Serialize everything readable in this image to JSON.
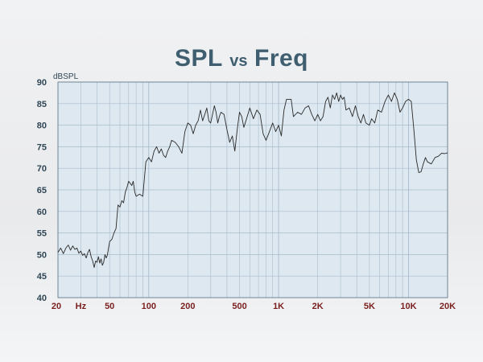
{
  "chart_data": {
    "type": "line",
    "title_main_left": "SPL",
    "title_vs": "vs",
    "title_main_right": "Freq",
    "ylabel": "dBSPL",
    "x_scale": "log",
    "xlim": [
      20,
      20000
    ],
    "ylim": [
      40,
      90
    ],
    "grid": true,
    "y_ticks": [
      40,
      45,
      50,
      55,
      60,
      65,
      70,
      75,
      80,
      85,
      90
    ],
    "x_ticks": [
      {
        "value": 20,
        "label": "20"
      },
      {
        "value": 30,
        "label": "Hz"
      },
      {
        "value": 50,
        "label": "50"
      },
      {
        "value": 100,
        "label": "100"
      },
      {
        "value": 200,
        "label": "200"
      },
      {
        "value": 500,
        "label": "500"
      },
      {
        "value": 1000,
        "label": "1K"
      },
      {
        "value": 2000,
        "label": "2K"
      },
      {
        "value": 5000,
        "label": "5K"
      },
      {
        "value": 10000,
        "label": "10K"
      },
      {
        "value": 20000,
        "label": "20K"
      }
    ],
    "colors": {
      "plot_background": "#dde8f0",
      "grid": "#a9bccb",
      "line": "#2a2a2a",
      "title": "#3f5e6f",
      "x_tick": "#7a1f1f",
      "y_tick": "#2f4654"
    },
    "series": [
      {
        "points": [
          [
            20,
            50.5
          ],
          [
            21,
            51.5
          ],
          [
            22,
            50.2
          ],
          [
            23,
            51.5
          ],
          [
            24,
            52.2
          ],
          [
            25,
            51.0
          ],
          [
            26,
            52.0
          ],
          [
            27,
            51.2
          ],
          [
            28,
            51.5
          ],
          [
            29,
            50.3
          ],
          [
            30,
            50.8
          ],
          [
            31,
            49.8
          ],
          [
            32,
            50.2
          ],
          [
            33,
            49.2
          ],
          [
            34,
            50.5
          ],
          [
            35,
            51.2
          ],
          [
            36,
            49.5
          ],
          [
            37,
            48.5
          ],
          [
            38,
            47.0
          ],
          [
            39,
            48.5
          ],
          [
            40,
            48.2
          ],
          [
            41,
            49.5
          ],
          [
            42,
            48.0
          ],
          [
            43,
            49.0
          ],
          [
            44,
            47.5
          ],
          [
            45,
            48.2
          ],
          [
            46,
            50.0
          ],
          [
            47,
            49.2
          ],
          [
            48,
            49.8
          ],
          [
            50,
            53.0
          ],
          [
            52,
            53.5
          ],
          [
            54,
            55.0
          ],
          [
            56,
            56.0
          ],
          [
            58,
            61.5
          ],
          [
            60,
            61.0
          ],
          [
            62,
            62.5
          ],
          [
            64,
            62.0
          ],
          [
            66,
            64.5
          ],
          [
            68,
            65.5
          ],
          [
            70,
            67.0
          ],
          [
            72,
            66.5
          ],
          [
            74,
            66.0
          ],
          [
            76,
            67.0
          ],
          [
            78,
            64.5
          ],
          [
            80,
            63.5
          ],
          [
            85,
            64.0
          ],
          [
            90,
            63.5
          ],
          [
            95,
            71.5
          ],
          [
            100,
            72.5
          ],
          [
            105,
            71.5
          ],
          [
            110,
            74.0
          ],
          [
            115,
            75.0
          ],
          [
            120,
            73.5
          ],
          [
            125,
            74.5
          ],
          [
            130,
            73.0
          ],
          [
            135,
            72.5
          ],
          [
            140,
            74.0
          ],
          [
            145,
            75.0
          ],
          [
            150,
            76.5
          ],
          [
            160,
            76.0
          ],
          [
            170,
            75.0
          ],
          [
            180,
            73.5
          ],
          [
            190,
            78.5
          ],
          [
            200,
            80.5
          ],
          [
            210,
            80.0
          ],
          [
            220,
            78.0
          ],
          [
            230,
            80.0
          ],
          [
            240,
            81.0
          ],
          [
            250,
            83.5
          ],
          [
            260,
            81.0
          ],
          [
            270,
            82.5
          ],
          [
            280,
            84.0
          ],
          [
            290,
            81.0
          ],
          [
            300,
            80.5
          ],
          [
            310,
            82.5
          ],
          [
            320,
            84.5
          ],
          [
            330,
            83.0
          ],
          [
            340,
            80.5
          ],
          [
            350,
            82.0
          ],
          [
            360,
            83.0
          ],
          [
            380,
            82.5
          ],
          [
            400,
            79.0
          ],
          [
            420,
            76.0
          ],
          [
            440,
            77.5
          ],
          [
            460,
            74.0
          ],
          [
            480,
            79.0
          ],
          [
            500,
            83.0
          ],
          [
            520,
            82.0
          ],
          [
            540,
            79.5
          ],
          [
            560,
            81.0
          ],
          [
            600,
            84.0
          ],
          [
            640,
            81.5
          ],
          [
            680,
            83.5
          ],
          [
            720,
            82.5
          ],
          [
            760,
            78.0
          ],
          [
            800,
            76.5
          ],
          [
            850,
            78.5
          ],
          [
            900,
            80.5
          ],
          [
            950,
            78.5
          ],
          [
            1000,
            80.0
          ],
          [
            1050,
            77.5
          ],
          [
            1100,
            83.5
          ],
          [
            1150,
            86.0
          ],
          [
            1250,
            86.0
          ],
          [
            1300,
            82.0
          ],
          [
            1400,
            83.0
          ],
          [
            1500,
            82.5
          ],
          [
            1600,
            84.0
          ],
          [
            1700,
            84.5
          ],
          [
            1800,
            82.5
          ],
          [
            1900,
            81.0
          ],
          [
            2000,
            82.5
          ],
          [
            2100,
            81.0
          ],
          [
            2200,
            82.0
          ],
          [
            2300,
            85.5
          ],
          [
            2400,
            86.5
          ],
          [
            2500,
            84.0
          ],
          [
            2600,
            87.0
          ],
          [
            2700,
            86.0
          ],
          [
            2800,
            87.5
          ],
          [
            2900,
            85.5
          ],
          [
            3000,
            87.0
          ],
          [
            3100,
            86.0
          ],
          [
            3200,
            86.5
          ],
          [
            3300,
            83.5
          ],
          [
            3500,
            84.0
          ],
          [
            3700,
            82.0
          ],
          [
            3900,
            84.5
          ],
          [
            4100,
            82.0
          ],
          [
            4300,
            80.5
          ],
          [
            4500,
            82.5
          ],
          [
            4700,
            80.5
          ],
          [
            5000,
            80.0
          ],
          [
            5200,
            81.5
          ],
          [
            5500,
            80.5
          ],
          [
            5800,
            83.5
          ],
          [
            6200,
            83.0
          ],
          [
            6600,
            85.5
          ],
          [
            7000,
            87.0
          ],
          [
            7400,
            85.5
          ],
          [
            7800,
            87.5
          ],
          [
            8200,
            86.0
          ],
          [
            8600,
            83.0
          ],
          [
            9000,
            84.0
          ],
          [
            9500,
            85.5
          ],
          [
            10000,
            86.0
          ],
          [
            10500,
            85.5
          ],
          [
            11000,
            79.0
          ],
          [
            11500,
            72.0
          ],
          [
            12000,
            69.0
          ],
          [
            12500,
            69.2
          ],
          [
            13000,
            71.0
          ],
          [
            13500,
            72.5
          ],
          [
            14000,
            71.5
          ],
          [
            15000,
            71.0
          ],
          [
            16000,
            72.5
          ],
          [
            17000,
            72.8
          ],
          [
            18000,
            73.5
          ],
          [
            19000,
            73.4
          ],
          [
            20000,
            73.6
          ]
        ]
      }
    ]
  }
}
